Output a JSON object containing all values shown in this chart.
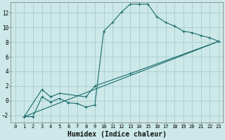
{
  "xlabel": "Humidex (Indice chaleur)",
  "background_color": "#cce8e8",
  "grid_color": "#aacccc",
  "line_color": "#1a6b6b",
  "xlim": [
    -0.5,
    23.5
  ],
  "ylim": [
    -3.0,
    13.5
  ],
  "yticks": [
    -2,
    0,
    2,
    4,
    6,
    8,
    10,
    12
  ],
  "xticks": [
    0,
    1,
    2,
    3,
    4,
    5,
    6,
    7,
    8,
    9,
    10,
    11,
    12,
    13,
    14,
    15,
    16,
    17,
    18,
    19,
    20,
    21,
    22,
    23
  ],
  "curve1_x": [
    1,
    2,
    3,
    4,
    5,
    6,
    7,
    8,
    9,
    10,
    11,
    12,
    13,
    14,
    15,
    16,
    17,
    18,
    19,
    20,
    21,
    22,
    23
  ],
  "curve1_y": [
    -2.2,
    -2.2,
    0.5,
    -0.2,
    0.3,
    -0.3,
    -0.4,
    -0.9,
    -0.6,
    9.5,
    10.7,
    12.1,
    13.2,
    13.2,
    13.2,
    11.5,
    10.7,
    10.2,
    9.5,
    9.3,
    8.9,
    8.6,
    8.1
  ],
  "curve2_x": [
    1,
    23
  ],
  "curve2_y": [
    -2.2,
    8.1
  ],
  "curve3_x": [
    1,
    3,
    4,
    5,
    8,
    9,
    13,
    23
  ],
  "curve3_y": [
    -2.2,
    1.5,
    0.5,
    1.0,
    0.5,
    2.0,
    3.7,
    8.1
  ],
  "curve4_x": [
    1,
    23
  ],
  "curve4_y": [
    -2.2,
    8.1
  ],
  "xlabel_fontsize": 7,
  "tick_fontsize": 5.5
}
